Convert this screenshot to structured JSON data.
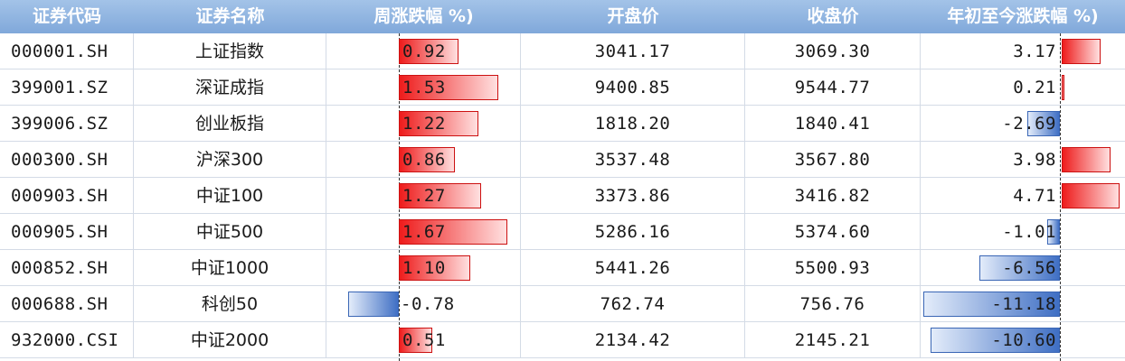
{
  "columns": [
    "证券代码",
    "证券名称",
    "周涨跌幅 %)",
    "开盘价",
    "收盘价",
    "年初至今涨跌幅 %)"
  ],
  "colors": {
    "header": "#8fb3e0",
    "positive": "#e02020",
    "negative": "#3f6fc4"
  },
  "rows": [
    {
      "code": "000001.SH",
      "name": "上证指数",
      "week": "0.92",
      "open": "3041.17",
      "close": "3069.30",
      "ytd": "3.17"
    },
    {
      "code": "399001.SZ",
      "name": "深证成指",
      "week": "1.53",
      "open": "9400.85",
      "close": "9544.77",
      "ytd": "0.21"
    },
    {
      "code": "399006.SZ",
      "name": "创业板指",
      "week": "1.22",
      "open": "1818.20",
      "close": "1840.41",
      "ytd": "-2.69"
    },
    {
      "code": "000300.SH",
      "name": "沪深300",
      "week": "0.86",
      "open": "3537.48",
      "close": "3567.80",
      "ytd": "3.98"
    },
    {
      "code": "000903.SH",
      "name": "中证100",
      "week": "1.27",
      "open": "3373.86",
      "close": "3416.82",
      "ytd": "4.71"
    },
    {
      "code": "000905.SH",
      "name": "中证500",
      "week": "1.67",
      "open": "5286.16",
      "close": "5374.60",
      "ytd": "-1.01"
    },
    {
      "code": "000852.SH",
      "name": "中证1000",
      "week": "1.10",
      "open": "5441.26",
      "close": "5500.93",
      "ytd": "-6.56"
    },
    {
      "code": "000688.SH",
      "name": "科创50",
      "week": "-0.78",
      "open": "762.74",
      "close": "756.76",
      "ytd": "-11.18"
    },
    {
      "code": "932000.CSI",
      "name": "中证2000",
      "week": "0.51",
      "open": "2134.42",
      "close": "2145.21",
      "ytd": "-10.60"
    }
  ]
}
